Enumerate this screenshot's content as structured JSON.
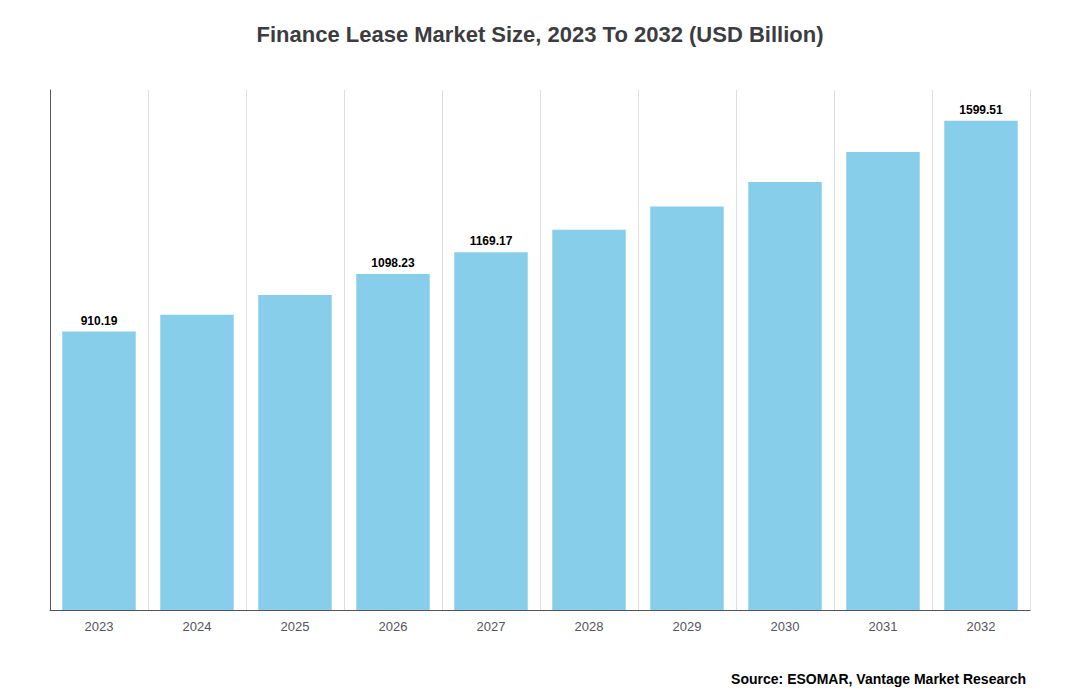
{
  "chart_data": {
    "type": "bar",
    "title": "Finance Lease Market Size, 2023 To 2032 (USD Billion)",
    "categories": [
      "2023",
      "2024",
      "2025",
      "2026",
      "2027",
      "2028",
      "2029",
      "2030",
      "2031",
      "2032"
    ],
    "values": [
      910.19,
      965.0,
      1030.0,
      1098.23,
      1169.17,
      1243.0,
      1319.0,
      1399.0,
      1497.0,
      1599.51
    ],
    "value_labels": [
      "910.19",
      null,
      null,
      "1098.23",
      "1169.17",
      null,
      null,
      null,
      null,
      "1599.51"
    ],
    "color": "#87CEEB",
    "ylim": [
      0,
      1700
    ],
    "grid": true,
    "tick_labels": "x",
    "annotation": "Source: ESOMAR, Vantage Market Research"
  }
}
